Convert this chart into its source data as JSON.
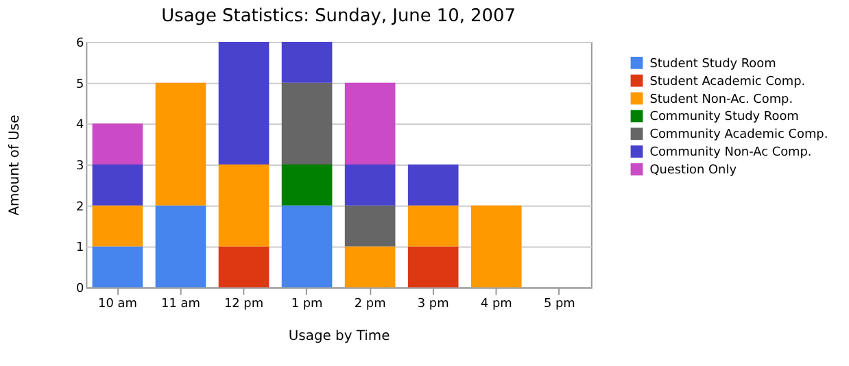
{
  "chart_data": {
    "type": "bar",
    "title": "Usage Statistics: Sunday, June 10, 2007",
    "xlabel": "Usage by Time",
    "ylabel": "Amount of Use",
    "stacked": true,
    "grid": "y",
    "legend": "right",
    "ylim": [
      0,
      6
    ],
    "yticks": [
      0,
      1,
      2,
      3,
      4,
      5,
      6
    ],
    "categories": [
      "10 am",
      "11 am",
      "12 pm",
      "1 pm",
      "2 pm",
      "3 pm",
      "4 pm",
      "5 pm"
    ],
    "series": [
      {
        "name": "Student Study Room",
        "color": "#4684ee",
        "values": [
          1,
          2,
          null,
          2,
          null,
          null,
          null,
          null
        ]
      },
      {
        "name": "Student Academic Comp.",
        "color": "#dc3912",
        "values": [
          null,
          null,
          1,
          null,
          null,
          1,
          null,
          null
        ]
      },
      {
        "name": "Student Non-Ac. Comp.",
        "color": "#ff9900",
        "values": [
          1,
          3,
          2,
          null,
          1,
          1,
          2,
          null
        ]
      },
      {
        "name": "Community Study Room",
        "color": "#008000",
        "values": [
          null,
          null,
          null,
          1,
          null,
          null,
          null,
          null
        ]
      },
      {
        "name": "Community Academic Comp.",
        "color": "#666666",
        "values": [
          null,
          null,
          null,
          2,
          1,
          null,
          null,
          null
        ]
      },
      {
        "name": "Community Non-Ac Comp.",
        "color": "#4942cc",
        "values": [
          1,
          null,
          3,
          1,
          1,
          1,
          null,
          null
        ]
      },
      {
        "name": "Question Only",
        "color": "#cb4ac5",
        "values": [
          1,
          null,
          null,
          null,
          2,
          null,
          null,
          null
        ]
      }
    ]
  }
}
